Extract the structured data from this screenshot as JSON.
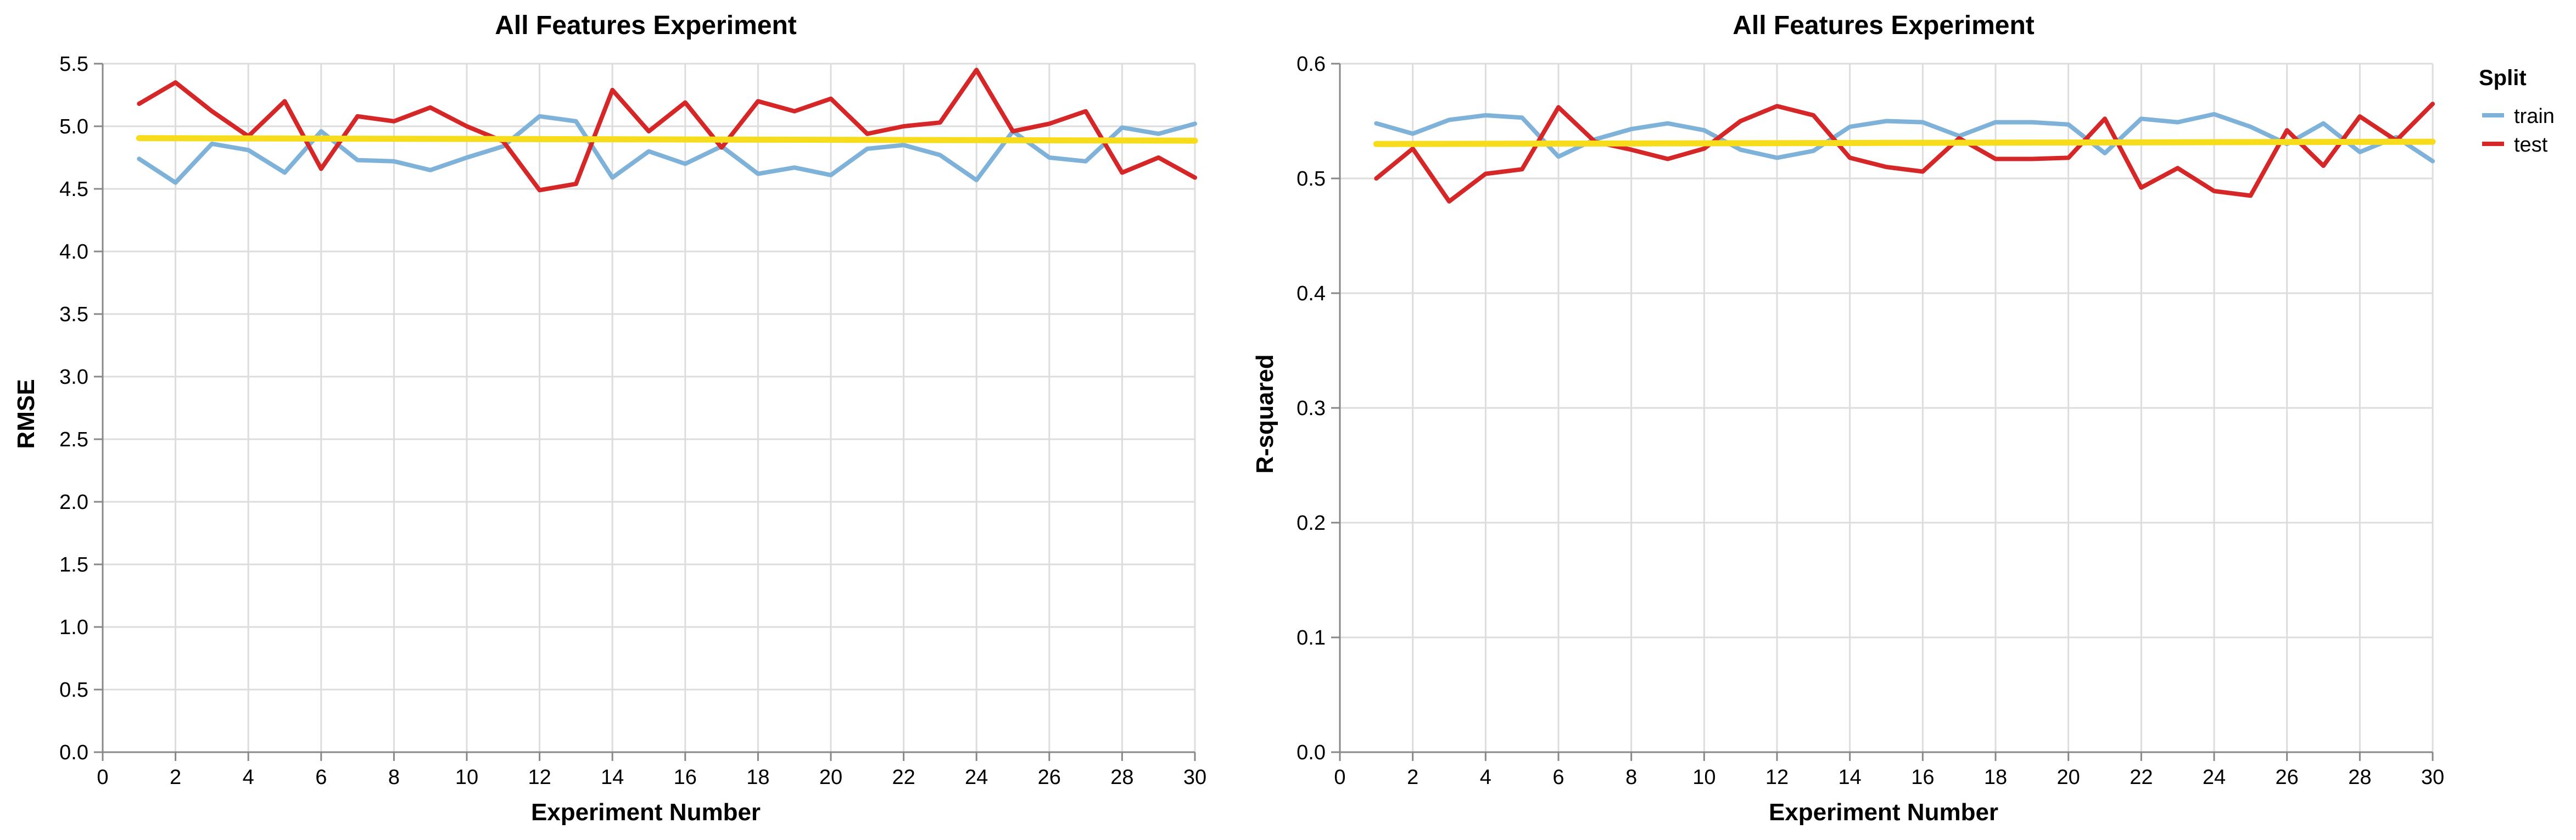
{
  "chart_data": [
    {
      "type": "line",
      "title": "All Features Experiment",
      "xlabel": "Experiment Number",
      "ylabel": "RMSE",
      "xlim": [
        0,
        30
      ],
      "ylim": [
        0,
        5.5
      ],
      "x_ticks": [
        0,
        2,
        4,
        6,
        8,
        10,
        12,
        14,
        16,
        18,
        20,
        22,
        24,
        26,
        28,
        30
      ],
      "y_ticks": [
        0.0,
        0.5,
        1.0,
        1.5,
        2.0,
        2.5,
        3.0,
        3.5,
        4.0,
        4.5,
        5.0,
        5.5
      ],
      "grid": true,
      "x": [
        1,
        2,
        3,
        4,
        5,
        6,
        7,
        8,
        9,
        10,
        11,
        12,
        13,
        14,
        15,
        16,
        17,
        18,
        19,
        20,
        21,
        22,
        23,
        24,
        25,
        26,
        27,
        28,
        29,
        30
      ],
      "series": [
        {
          "name": "train",
          "color": "#7fb2d9",
          "values": [
            4.74,
            4.55,
            4.86,
            4.81,
            4.63,
            4.96,
            4.73,
            4.72,
            4.65,
            4.75,
            4.84,
            5.08,
            5.04,
            4.59,
            4.8,
            4.7,
            4.84,
            4.62,
            4.67,
            4.61,
            4.82,
            4.85,
            4.77,
            4.57,
            4.96,
            4.75,
            4.72,
            4.99,
            4.94,
            5.02
          ]
        },
        {
          "name": "test",
          "color": "#d62728",
          "values": [
            5.18,
            5.35,
            5.12,
            4.92,
            5.2,
            4.66,
            5.08,
            5.04,
            5.15,
            5.0,
            4.88,
            4.49,
            4.54,
            5.29,
            4.96,
            5.19,
            4.83,
            5.2,
            5.12,
            5.22,
            4.94,
            5.0,
            5.03,
            5.45,
            4.96,
            5.02,
            5.12,
            4.63,
            4.75,
            4.59
          ]
        }
      ],
      "trend_line": {
        "color": "#f7dc1c",
        "x": [
          1,
          30
        ],
        "y": [
          4.905,
          4.885
        ]
      }
    },
    {
      "type": "line",
      "title": "All Features Experiment",
      "xlabel": "Experiment Number",
      "ylabel": "R-squared",
      "xlim": [
        0,
        30
      ],
      "ylim": [
        0,
        0.6
      ],
      "x_ticks": [
        0,
        2,
        4,
        6,
        8,
        10,
        12,
        14,
        16,
        18,
        20,
        22,
        24,
        26,
        28,
        30
      ],
      "y_ticks": [
        0.0,
        0.1,
        0.2,
        0.3,
        0.4,
        0.5,
        0.6
      ],
      "grid": true,
      "x": [
        1,
        2,
        3,
        4,
        5,
        6,
        7,
        8,
        9,
        10,
        11,
        12,
        13,
        14,
        15,
        16,
        17,
        18,
        19,
        20,
        21,
        22,
        23,
        24,
        25,
        26,
        27,
        28,
        29,
        30
      ],
      "series": [
        {
          "name": "train",
          "color": "#7fb2d9",
          "values": [
            0.548,
            0.539,
            0.551,
            0.555,
            0.553,
            0.519,
            0.534,
            0.543,
            0.548,
            0.542,
            0.525,
            0.518,
            0.524,
            0.545,
            0.55,
            0.549,
            0.537,
            0.549,
            0.549,
            0.547,
            0.522,
            0.552,
            0.549,
            0.556,
            0.545,
            0.53,
            0.548,
            0.523,
            0.536,
            0.515
          ]
        },
        {
          "name": "test",
          "color": "#d62728",
          "values": [
            0.5,
            0.526,
            0.48,
            0.504,
            0.508,
            0.562,
            0.532,
            0.525,
            0.517,
            0.526,
            0.55,
            0.563,
            0.555,
            0.518,
            0.51,
            0.506,
            0.535,
            0.517,
            0.517,
            0.518,
            0.552,
            0.492,
            0.509,
            0.489,
            0.485,
            0.542,
            0.511,
            0.554,
            0.533,
            0.565
          ]
        }
      ],
      "trend_line": {
        "color": "#f7dc1c",
        "x": [
          1,
          30
        ],
        "y": [
          0.53,
          0.532
        ]
      }
    }
  ],
  "legend": {
    "title": "Split",
    "placement": "top-right",
    "items": [
      {
        "label": "train",
        "color": "#7fb2d9"
      },
      {
        "label": "test",
        "color": "#d62728"
      }
    ]
  }
}
